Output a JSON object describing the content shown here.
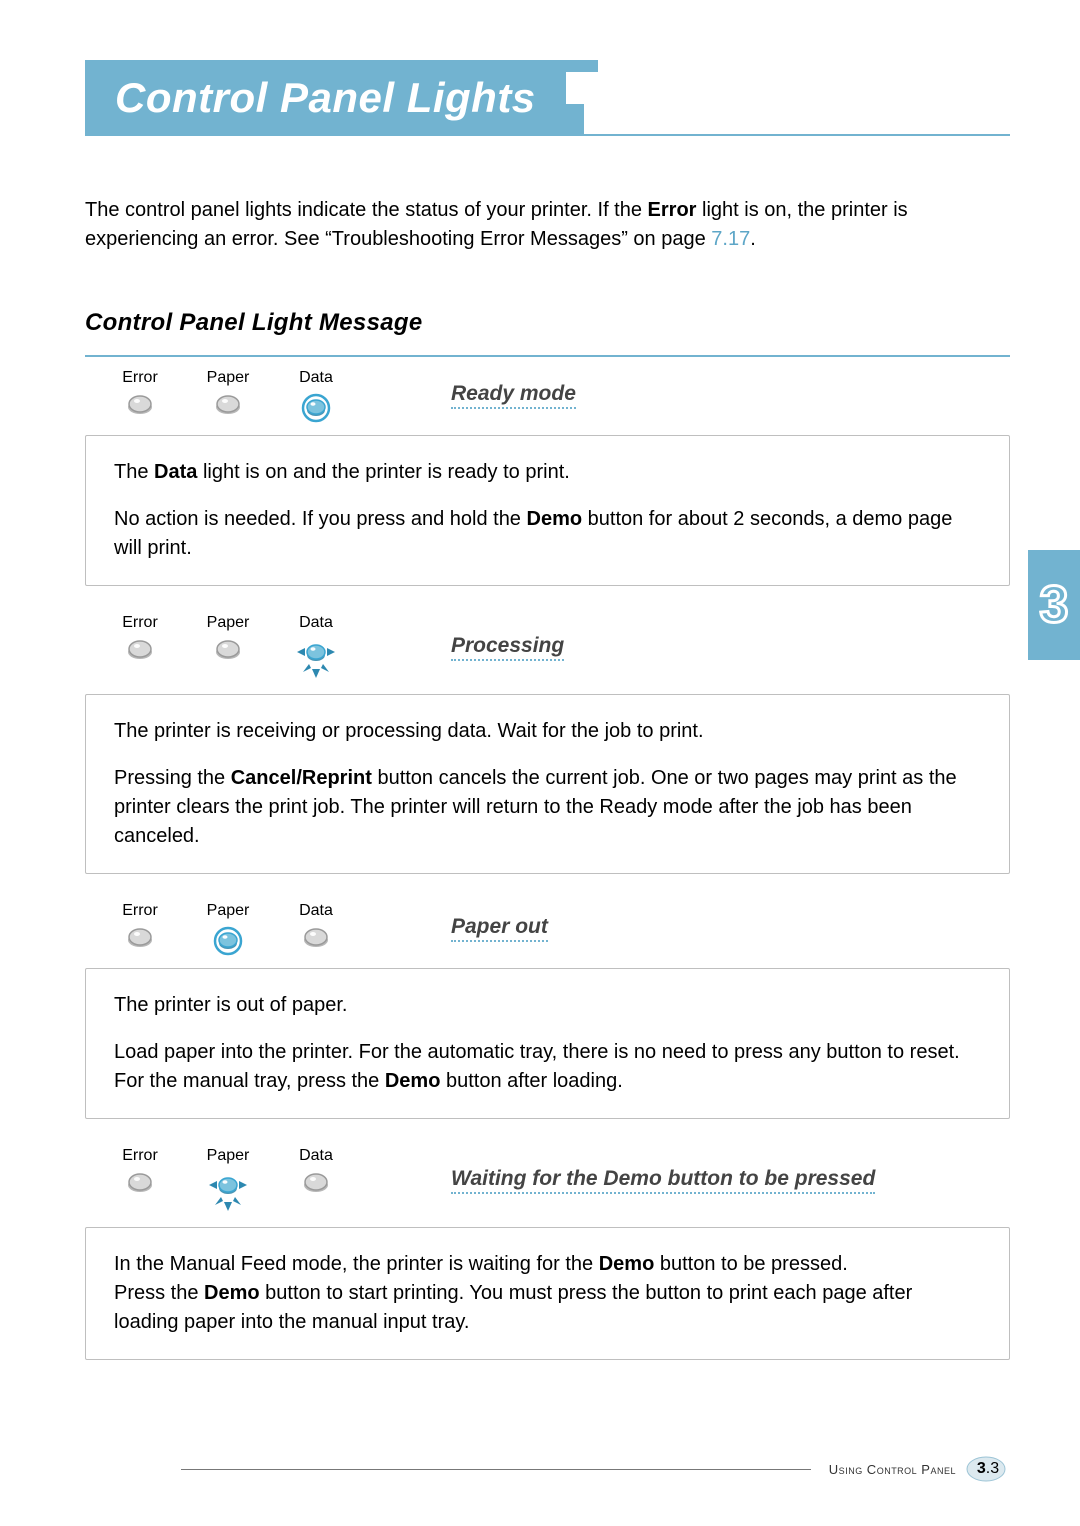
{
  "colors": {
    "accent": "#72b3d0",
    "text": "#000000",
    "link": "#5da6c7",
    "card_border": "#bfbfbf",
    "led_on_ring": "#3aa5d1",
    "led_on_fill": "#7cc3de",
    "led_off_fill": "#d9d9d9",
    "led_off_stroke": "#9a9a9a",
    "blink_arrow": "#2d88b0",
    "page_bg": "#ffffff"
  },
  "fonts": {
    "title_family": "Trebuchet MS",
    "body_family": "Verdana",
    "title_size_pt": 32,
    "subhead_size_pt": 18,
    "body_size_pt": 15,
    "led_label_size_pt": 12,
    "mode_title_size_pt": 16
  },
  "title": "Control Panel Lights",
  "intro": {
    "pre": "The control panel lights indicate the status of your printer. If the ",
    "bold1": "Error",
    "mid": " light is on, the printer is experiencing an error. See “Troubleshooting Error Messages” on page ",
    "link": "7.17",
    "post": "."
  },
  "subhead": "Control Panel Light Message",
  "led_labels": {
    "error": "Error",
    "paper": "Paper",
    "data": "Data"
  },
  "cards": [
    {
      "mode_title": "Ready mode",
      "leds": {
        "error": "off",
        "paper": "off",
        "data": "on"
      },
      "body": [
        {
          "segments": [
            {
              "t": "The "
            },
            {
              "t": "Data",
              "b": true
            },
            {
              "t": " light is on and the printer is ready to print."
            }
          ]
        },
        {
          "segments": [
            {
              "t": "No action is needed. If you press and hold the "
            },
            {
              "t": "Demo",
              "b": true
            },
            {
              "t": " button for about 2 seconds, a demo page will print."
            }
          ]
        }
      ]
    },
    {
      "mode_title": "Processing",
      "leds": {
        "error": "off",
        "paper": "off",
        "data": "blink"
      },
      "body": [
        {
          "segments": [
            {
              "t": "The printer is receiving or processing data. Wait for the job to print."
            }
          ]
        },
        {
          "segments": [
            {
              "t": "Pressing the "
            },
            {
              "t": "Cancel/Reprint",
              "b": true
            },
            {
              "t": " button cancels the current job. One or two pages may print as the printer clears the print job. The printer will return to the Ready mode after the job has been canceled."
            }
          ]
        }
      ]
    },
    {
      "mode_title": "Paper out",
      "leds": {
        "error": "off",
        "paper": "on",
        "data": "off"
      },
      "body": [
        {
          "segments": [
            {
              "t": "The printer is out of paper."
            }
          ]
        },
        {
          "segments": [
            {
              "t": "Load paper into the printer. For the automatic tray, there is no need to press any button to reset. For the manual tray, press the "
            },
            {
              "t": "Demo",
              "b": true
            },
            {
              "t": " button after loading."
            }
          ]
        }
      ]
    },
    {
      "mode_title": "Waiting for the Demo button to be pressed",
      "leds": {
        "error": "off",
        "paper": "blink",
        "data": "off"
      },
      "body": [
        {
          "segments": [
            {
              "t": "In the Manual Feed mode, the printer is waiting for the "
            },
            {
              "t": "Demo",
              "b": true
            },
            {
              "t": " button to be pressed."
            }
          ]
        },
        {
          "segments": [
            {
              "t": "Press the "
            },
            {
              "t": "Demo",
              "b": true
            },
            {
              "t": " button to start printing. You must press the button to print each page after loading paper into the manual input tray."
            }
          ]
        },
        {
          "merge_prev": true
        }
      ]
    }
  ],
  "side_tab": "3",
  "footer": {
    "section": "Using Control Panel",
    "page_prefix": "3",
    "page_suffix": ".3"
  }
}
